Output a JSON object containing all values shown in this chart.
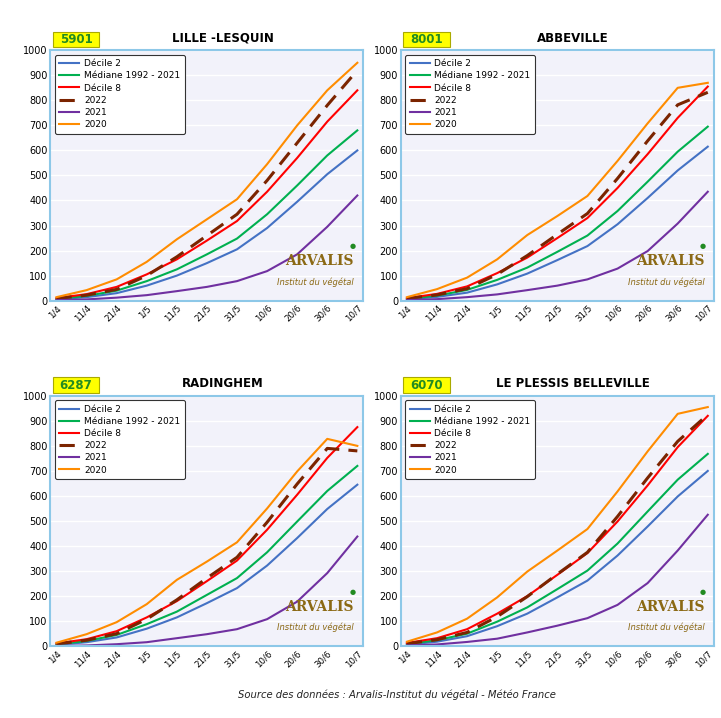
{
  "stations": [
    {
      "id": "5901",
      "name": "LILLE -LESQUIN"
    },
    {
      "id": "8001",
      "name": "ABBEVILLE"
    },
    {
      "id": "6287",
      "name": "RADINGHEM"
    },
    {
      "id": "6070",
      "name": "LE PLESSIS BELLEVILLE"
    }
  ],
  "x_labels": [
    "1/4",
    "11/4",
    "21/4",
    "1/5",
    "11/5",
    "21/5",
    "31/5",
    "10/6",
    "20/6",
    "30/6",
    "10/7"
  ],
  "series": {
    "decile2": {
      "label": "Décile 2",
      "color": "#4472C4",
      "lw": 1.5,
      "dashes": null
    },
    "median": {
      "label": "Médiane 1992 - 2021",
      "color": "#00B050",
      "lw": 1.5,
      "dashes": null
    },
    "decile8": {
      "label": "Décile 8",
      "color": "#FF0000",
      "lw": 1.5,
      "dashes": null
    },
    "y2022": {
      "label": "2022",
      "color": "#7B2400",
      "lw": 2.2,
      "dashes": [
        5,
        3
      ]
    },
    "y2021": {
      "label": "2021",
      "color": "#7030A0",
      "lw": 1.5,
      "dashes": null
    },
    "y2020": {
      "label": "2020",
      "color": "#FF8C00",
      "lw": 1.5,
      "dashes": null
    }
  },
  "data": {
    "5901": {
      "decile2": [
        5,
        14,
        30,
        60,
        100,
        150,
        205,
        290,
        395,
        505,
        600
      ],
      "median": [
        7,
        19,
        40,
        78,
        125,
        185,
        248,
        345,
        460,
        580,
        680
      ],
      "decile8": [
        10,
        26,
        55,
        105,
        165,
        240,
        318,
        435,
        570,
        715,
        840
      ],
      "y2022": [
        8,
        22,
        45,
        100,
        175,
        260,
        345,
        480,
        630,
        780,
        920
      ],
      "y2021": [
        2,
        5,
        12,
        22,
        38,
        55,
        78,
        118,
        185,
        295,
        420
      ],
      "y2020": [
        14,
        42,
        85,
        155,
        245,
        325,
        405,
        545,
        700,
        840,
        950
      ]
    },
    "8001": {
      "decile2": [
        5,
        15,
        32,
        65,
        108,
        162,
        218,
        305,
        410,
        520,
        615
      ],
      "median": [
        7,
        20,
        43,
        83,
        132,
        195,
        260,
        358,
        475,
        595,
        695
      ],
      "decile8": [
        10,
        27,
        57,
        110,
        172,
        250,
        330,
        450,
        585,
        730,
        855
      ],
      "y2022": [
        8,
        23,
        48,
        105,
        180,
        265,
        348,
        488,
        638,
        782,
        832
      ],
      "y2021": [
        2,
        6,
        14,
        25,
        42,
        60,
        85,
        128,
        198,
        308,
        435
      ],
      "y2020": [
        14,
        46,
        92,
        165,
        262,
        338,
        418,
        558,
        708,
        850,
        870
      ]
    },
    "6287": {
      "decile2": [
        5,
        16,
        35,
        70,
        115,
        172,
        232,
        322,
        432,
        548,
        645
      ],
      "median": [
        7,
        21,
        45,
        88,
        138,
        205,
        272,
        375,
        498,
        620,
        720
      ],
      "decile8": [
        11,
        28,
        60,
        115,
        180,
        260,
        342,
        465,
        605,
        752,
        875
      ],
      "y2022": [
        9,
        24,
        50,
        108,
        185,
        272,
        355,
        495,
        648,
        790,
        780
      ],
      "y2021": [
        1,
        3,
        8,
        16,
        32,
        48,
        68,
        108,
        178,
        292,
        438
      ],
      "y2020": [
        14,
        48,
        96,
        168,
        265,
        338,
        415,
        550,
        698,
        828,
        800
      ]
    },
    "6070": {
      "decile2": [
        6,
        18,
        40,
        80,
        130,
        195,
        262,
        362,
        478,
        598,
        700
      ],
      "median": [
        9,
        24,
        50,
        98,
        155,
        228,
        302,
        410,
        538,
        665,
        768
      ],
      "decile8": [
        13,
        32,
        68,
        130,
        200,
        285,
        372,
        498,
        642,
        795,
        920
      ],
      "y2022": [
        10,
        26,
        55,
        118,
        198,
        288,
        375,
        518,
        672,
        818,
        925
      ],
      "y2021": [
        3,
        7,
        17,
        30,
        55,
        82,
        112,
        165,
        252,
        382,
        525
      ],
      "y2020": [
        18,
        55,
        110,
        195,
        298,
        382,
        468,
        618,
        778,
        928,
        955
      ]
    }
  },
  "ylim": [
    0,
    1000
  ],
  "yticks": [
    0,
    100,
    200,
    300,
    400,
    500,
    600,
    700,
    800,
    900,
    1000
  ],
  "bg_color": "#FFFFFF",
  "plot_bg_color": "#F2F2FA",
  "grid_color": "#FFFFFF",
  "border_color": "#8DC8E8",
  "source_text": "Source des données : Arvalis-Institut du végétal - Météo France",
  "arvalis_color": "#8B6914",
  "station_id_bg": "#FFFF00",
  "station_id_color": "#228B22"
}
